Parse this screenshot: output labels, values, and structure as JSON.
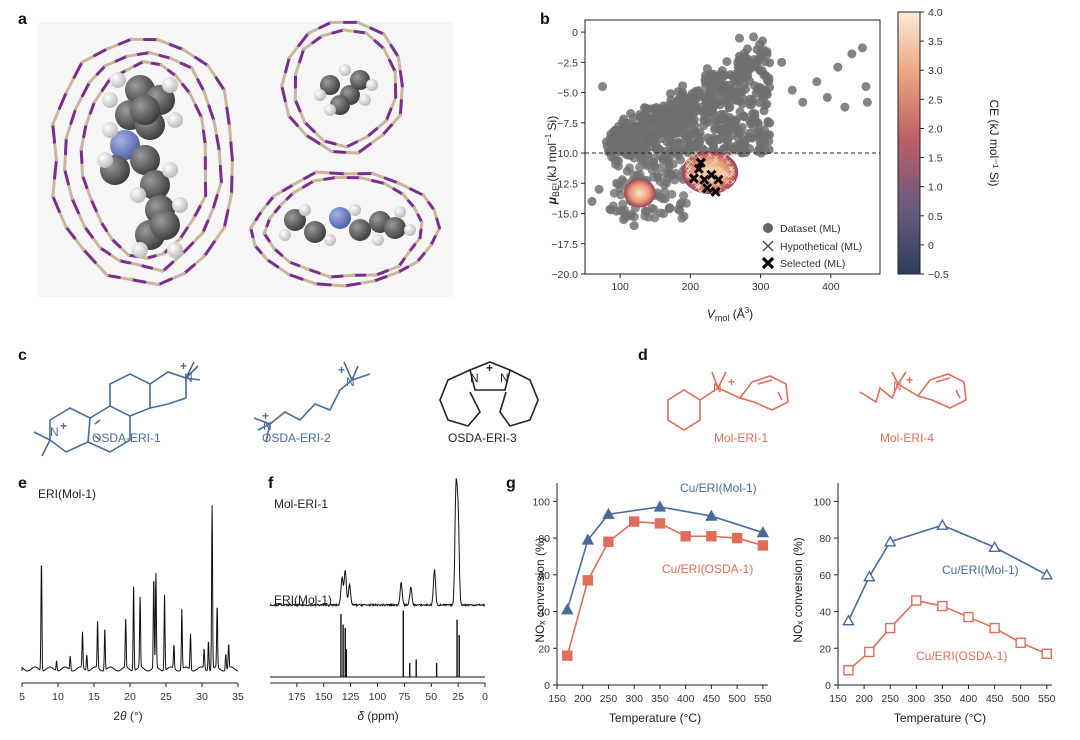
{
  "panels": {
    "a": "a",
    "b": "b",
    "c": "c",
    "d": "d",
    "e": "e",
    "f": "f",
    "g": "g"
  },
  "colors": {
    "blue": "#4a6a9a",
    "red": "#e06c5a",
    "framework_a": "#c9b79c",
    "framework_b": "#7b2d8e",
    "dark": "#555555"
  },
  "panel_c": {
    "mol1": "OSDA-ERI-1",
    "mol2": "OSDA-ERI-2",
    "mol3": "OSDA-ERI-3"
  },
  "panel_d": {
    "mol1": "Mol-ERI-1",
    "mol2": "Mol-ERI-4"
  },
  "panel_e": {
    "label": "ERI(Mol-1)",
    "xlabel": "2θ (°)"
  },
  "panel_f": {
    "label_top": "Mol-ERI-1",
    "label_bottom": "ERI(Mol-1)",
    "xlabel": "δ (ppm)"
  },
  "chart_data": [
    {
      "id": "b",
      "type": "scatter",
      "xlabel": "V_mol (Å³)",
      "ylabel": "μ_BE (kJ mol⁻¹ Si)",
      "xlim": [
        50,
        470
      ],
      "ylim": [
        -20,
        1
      ],
      "xticks": [
        100,
        200,
        300,
        400
      ],
      "yticks": [
        0,
        -2.5,
        -5,
        -7.5,
        -10,
        -12.5,
        -15,
        -17.5,
        -20
      ],
      "ytick_labels": [
        "0",
        "−2.5",
        "−5.0",
        "−7.5",
        "−10.0",
        "−12.5",
        "−15.0",
        "−17.5",
        "−20.0"
      ],
      "threshold": -10,
      "colorbar": {
        "label": "CE (kJ mol⁻¹ Si)",
        "min": -0.5,
        "max": 4.0,
        "ticks": [
          "4.0",
          "3.5",
          "3.0",
          "2.5",
          "2.0",
          "1.5",
          "1.0",
          "0.5",
          "0",
          "−0.5"
        ]
      },
      "legend": [
        "Dataset (ML)",
        "Hypothetical (ML)",
        "Selected (ML)"
      ],
      "selected": [
        [
          212,
          -11.3
        ],
        [
          220,
          -12.2
        ],
        [
          230,
          -11.8
        ],
        [
          224,
          -12.9
        ],
        [
          240,
          -12.2
        ],
        [
          205,
          -12.1
        ],
        [
          236,
          -13.2
        ],
        [
          215,
          -10.8
        ]
      ]
    },
    {
      "id": "e",
      "type": "line",
      "xlabel": "2θ (°)",
      "xlim": [
        5,
        35
      ],
      "xticks": [
        5,
        10,
        15,
        20,
        25,
        30,
        35
      ],
      "peaks": [
        [
          7.7,
          0.55
        ],
        [
          9.8,
          0.05
        ],
        [
          11.7,
          0.07
        ],
        [
          13.4,
          0.18
        ],
        [
          14.0,
          0.08
        ],
        [
          15.5,
          0.24
        ],
        [
          16.5,
          0.21
        ],
        [
          19.4,
          0.24
        ],
        [
          20.5,
          0.44
        ],
        [
          21.4,
          0.35
        ],
        [
          23.3,
          0.45
        ],
        [
          23.6,
          0.47
        ],
        [
          24.8,
          0.38
        ],
        [
          26.1,
          0.12
        ],
        [
          27.2,
          0.3
        ],
        [
          28.4,
          0.18
        ],
        [
          30.3,
          0.1
        ],
        [
          30.9,
          0.15
        ],
        [
          31.4,
          0.82
        ],
        [
          32.1,
          0.31
        ],
        [
          33.3,
          0.08
        ],
        [
          33.7,
          0.12
        ]
      ]
    },
    {
      "id": "f",
      "type": "line",
      "xlabel": "δ (ppm)",
      "xlim": [
        200,
        0
      ],
      "xticks": [
        175,
        150,
        125,
        100,
        75,
        50,
        25,
        0
      ],
      "top_peaks": [
        [
          133,
          0.22
        ],
        [
          130,
          0.28
        ],
        [
          126,
          0.16
        ],
        [
          78,
          0.18
        ],
        [
          69,
          0.14
        ],
        [
          47,
          0.28
        ],
        [
          27,
          0.9
        ],
        [
          25,
          0.7
        ]
      ],
      "bottom_peaks": [
        [
          134,
          0.9
        ],
        [
          132,
          0.75
        ],
        [
          130,
          0.7
        ],
        [
          129,
          0.4
        ],
        [
          76,
          0.95
        ],
        [
          70,
          0.2
        ],
        [
          64,
          0.25
        ],
        [
          45,
          0.2
        ],
        [
          26,
          0.82
        ],
        [
          24,
          0.6
        ]
      ]
    },
    {
      "id": "g1",
      "type": "line",
      "xlabel": "Temperature (°C)",
      "ylabel": "NOₓ conversion (%)",
      "xlim": [
        150,
        560
      ],
      "ylim": [
        0,
        110
      ],
      "xticks": [
        150,
        200,
        250,
        300,
        350,
        400,
        450,
        500,
        550
      ],
      "yticks": [
        0,
        20,
        40,
        60,
        80,
        100
      ],
      "series": [
        {
          "name": "Cu/ERI(Mol-1)",
          "marker": "triangle-filled",
          "x": [
            170,
            210,
            250,
            350,
            450,
            550
          ],
          "y": [
            41,
            79,
            93,
            97,
            92,
            83
          ]
        },
        {
          "name": "Cu/ERI(OSDA-1)",
          "marker": "square-filled",
          "x": [
            170,
            210,
            250,
            300,
            350,
            400,
            450,
            500,
            550
          ],
          "y": [
            16,
            57,
            78,
            89,
            88,
            81,
            81,
            80,
            76
          ]
        }
      ]
    },
    {
      "id": "g2",
      "type": "line",
      "xlabel": "Temperature (°C)",
      "ylabel": "NOₓ conversion (%)",
      "xlim": [
        150,
        560
      ],
      "ylim": [
        0,
        110
      ],
      "xticks": [
        150,
        200,
        250,
        300,
        350,
        400,
        450,
        500,
        550
      ],
      "yticks": [
        0,
        20,
        40,
        60,
        80,
        100
      ],
      "series": [
        {
          "name": "Cu/ERI(Mol-1)",
          "marker": "triangle-open",
          "x": [
            170,
            210,
            250,
            350,
            450,
            550
          ],
          "y": [
            35,
            59,
            78,
            87,
            75,
            60
          ]
        },
        {
          "name": "Cu/ERI(OSDA-1)",
          "marker": "square-open",
          "x": [
            170,
            210,
            250,
            300,
            350,
            400,
            450,
            500,
            550
          ],
          "y": [
            8,
            18,
            31,
            46,
            43,
            37,
            31,
            23,
            17
          ]
        }
      ]
    }
  ]
}
